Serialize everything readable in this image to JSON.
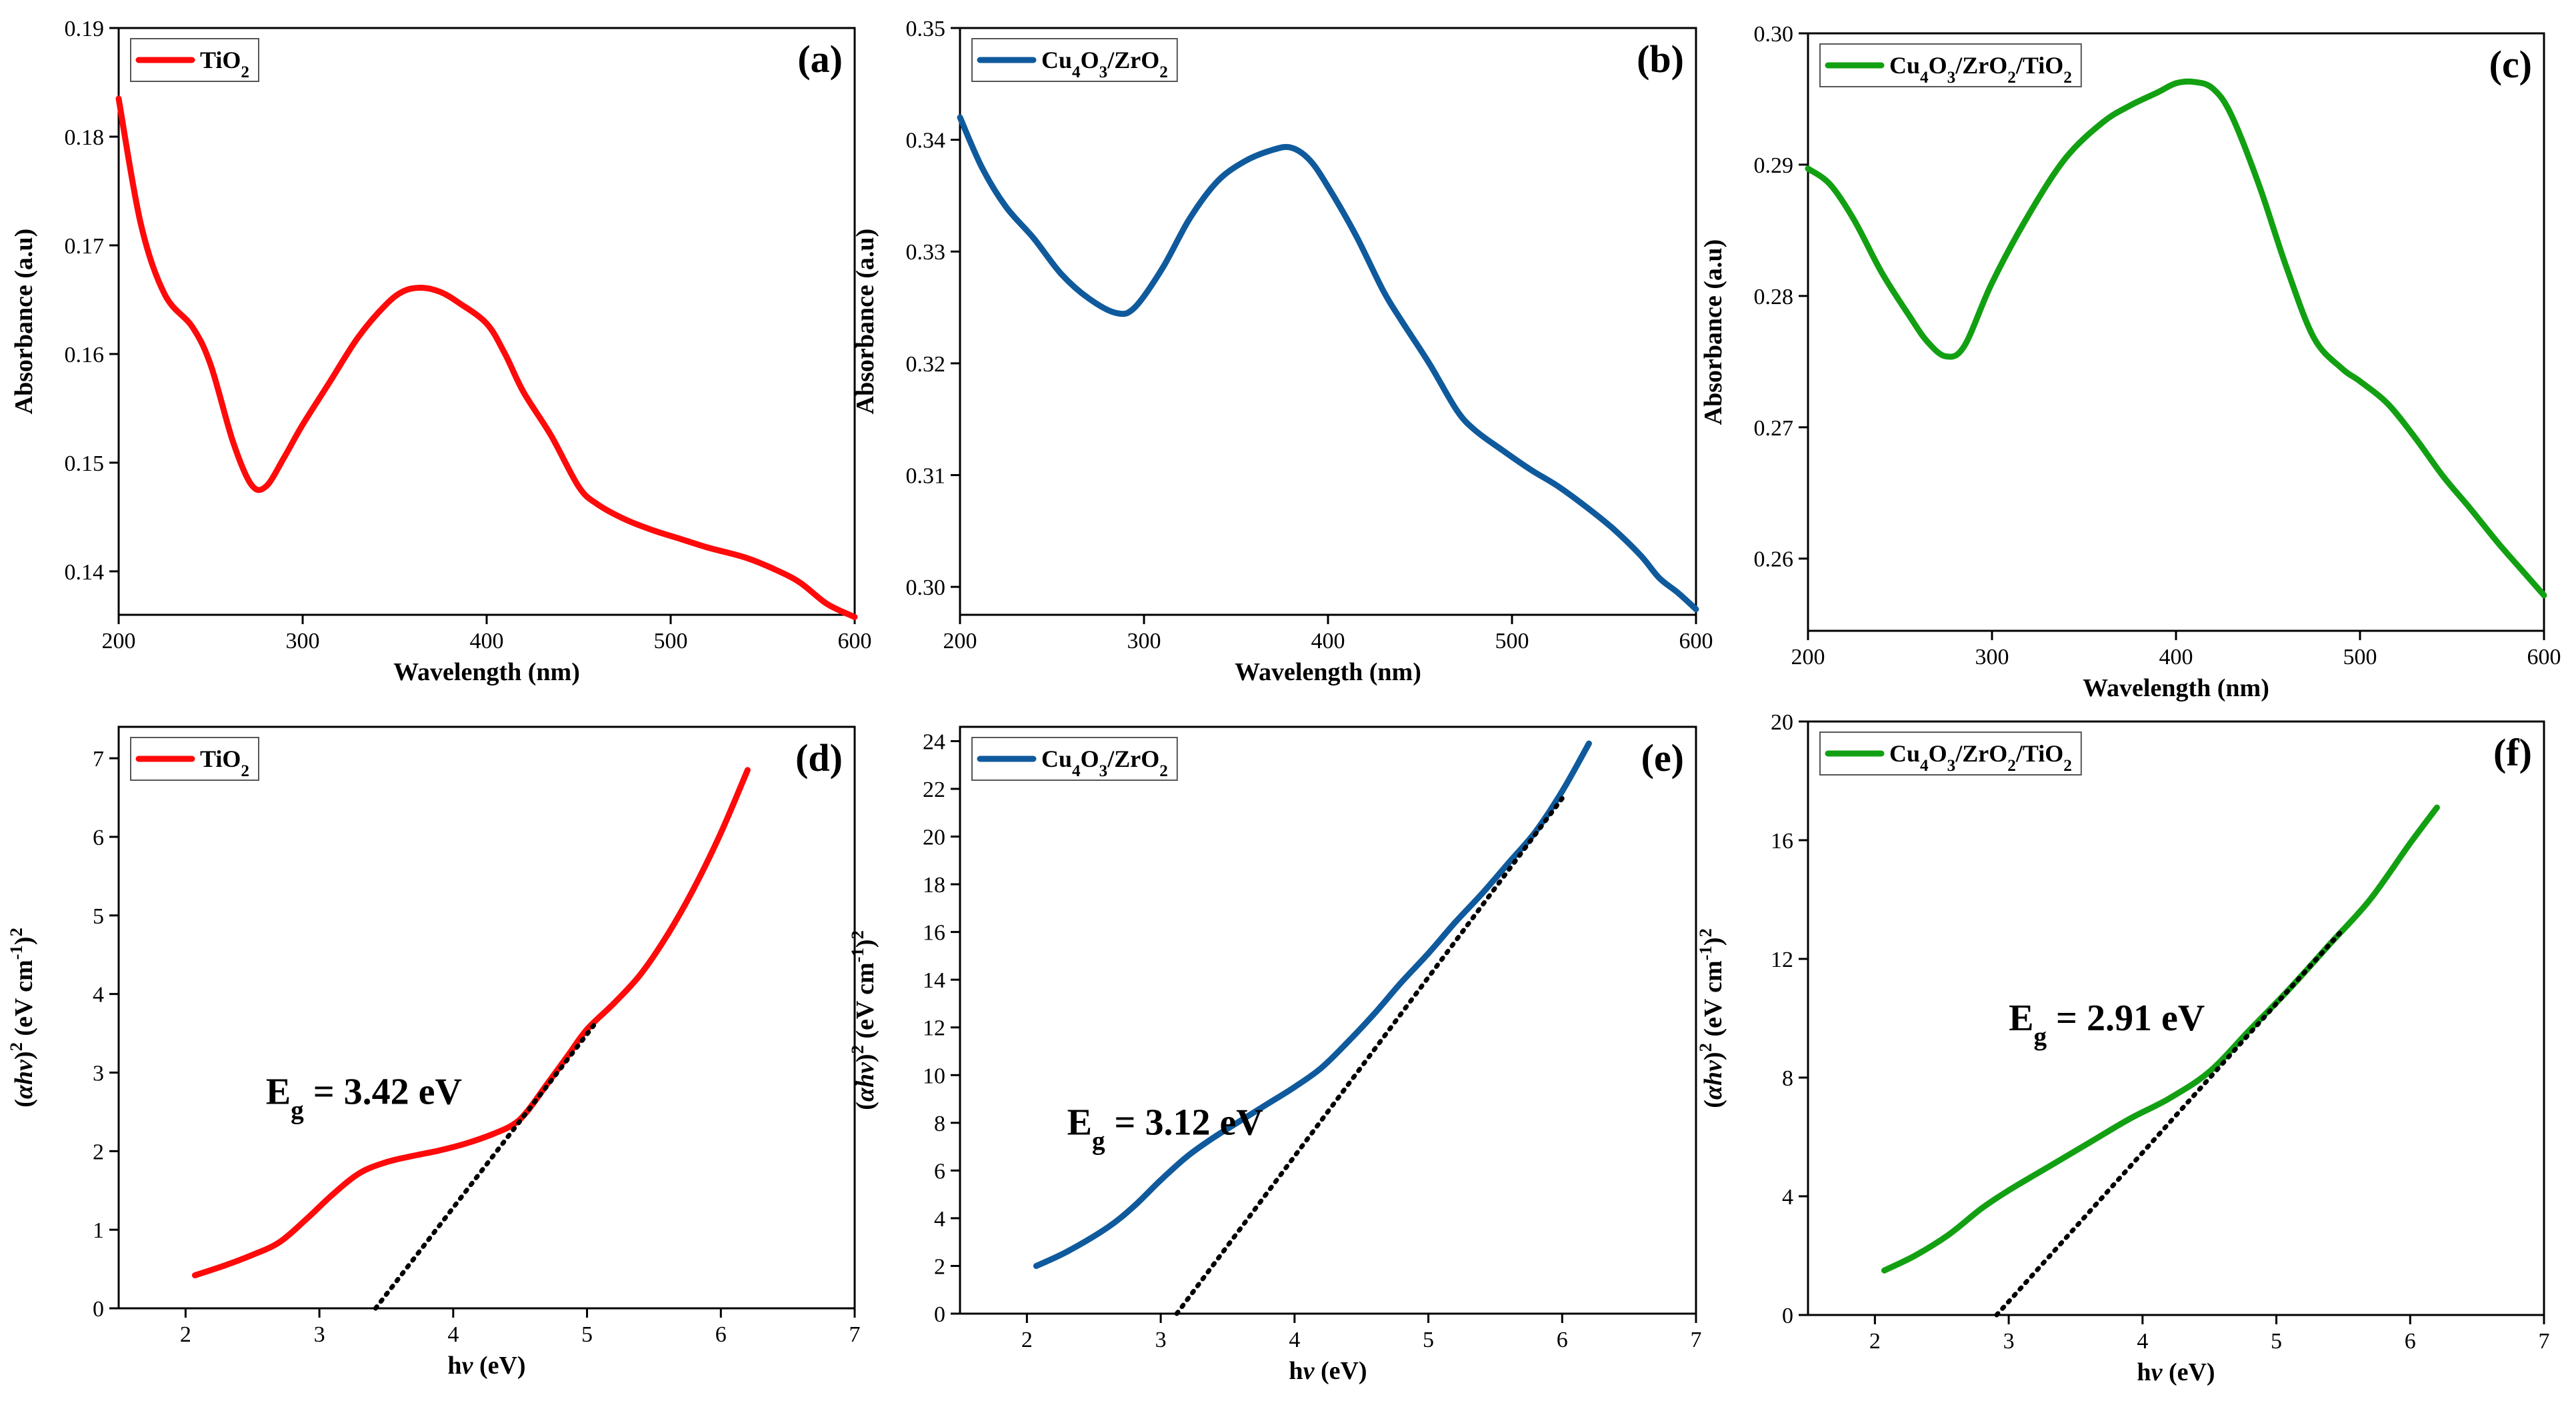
{
  "chart_data": [
    {
      "panel": "(a)",
      "type": "line",
      "title": "",
      "xlabel": "Wavelength (nm)",
      "ylabel": "Absorbance (a.u)",
      "xlim": [
        200,
        600
      ],
      "ylim": [
        0.136,
        0.19
      ],
      "xticks": [
        200,
        300,
        400,
        500,
        600
      ],
      "yticks": [
        0.14,
        0.15,
        0.16,
        0.17,
        0.18,
        0.19
      ],
      "tick_decimals": 2,
      "legend": {
        "label": "TiO2",
        "formula": [
          [
            "TiO",
            ""
          ],
          [
            "2",
            "sub"
          ]
        ],
        "placement": "top-left"
      },
      "series": [
        {
          "name": "TiO2",
          "color": "#ff0a0a",
          "x": [
            200,
            212,
            225,
            240,
            250,
            262,
            272,
            280,
            290,
            300,
            315,
            330,
            345,
            355,
            365,
            375,
            385,
            400,
            410,
            420,
            435,
            450,
            460,
            475,
            490,
            505,
            520,
            540,
            555,
            570,
            585,
            600
          ],
          "y": [
            0.1835,
            0.172,
            0.1655,
            0.1625,
            0.159,
            0.152,
            0.148,
            0.1478,
            0.1505,
            0.1535,
            0.1575,
            0.1615,
            0.1645,
            0.1658,
            0.1661,
            0.1657,
            0.1647,
            0.1628,
            0.16,
            0.1565,
            0.1525,
            0.1478,
            0.1462,
            0.1448,
            0.1438,
            0.143,
            0.1422,
            0.1413,
            0.1403,
            0.139,
            0.137,
            0.1358
          ]
        }
      ]
    },
    {
      "panel": "(b)",
      "type": "line",
      "title": "",
      "xlabel": "Wavelength (nm)",
      "ylabel": "Absorbance (a.u)",
      "xlim": [
        200,
        600
      ],
      "ylim": [
        0.2975,
        0.35
      ],
      "xticks": [
        200,
        300,
        400,
        500,
        600
      ],
      "yticks": [
        0.3,
        0.31,
        0.32,
        0.33,
        0.34,
        0.35
      ],
      "tick_decimals": 2,
      "legend": {
        "label": "Cu4O3/ZrO2",
        "formula": [
          [
            "Cu",
            ""
          ],
          [
            "4",
            "sub"
          ],
          [
            "O",
            ""
          ],
          [
            "3",
            "sub"
          ],
          [
            "/ZrO",
            ""
          ],
          [
            "2",
            "sub"
          ]
        ],
        "placement": "top-left"
      },
      "series": [
        {
          "name": "Cu4O3/ZrO2",
          "color": "#0f5a9c",
          "x": [
            200,
            212,
            225,
            240,
            255,
            270,
            285,
            295,
            310,
            325,
            340,
            355,
            370,
            380,
            390,
            400,
            415,
            430,
            440,
            455,
            470,
            480,
            495,
            510,
            525,
            540,
            555,
            570,
            580,
            590,
            600
          ],
          "y": [
            0.342,
            0.3375,
            0.334,
            0.3312,
            0.328,
            0.3258,
            0.3245,
            0.325,
            0.3285,
            0.333,
            0.3363,
            0.3381,
            0.3391,
            0.3393,
            0.3382,
            0.3358,
            0.3315,
            0.3265,
            0.3238,
            0.32,
            0.3158,
            0.314,
            0.3122,
            0.3105,
            0.309,
            0.3072,
            0.3052,
            0.3028,
            0.3008,
            0.2995,
            0.298
          ]
        }
      ]
    },
    {
      "panel": "(c)",
      "type": "line",
      "title": "",
      "xlabel": "Wavelength (nm)",
      "ylabel": "Absorbance (a.u)",
      "xlim": [
        200,
        600
      ],
      "ylim": [
        0.2545,
        0.3
      ],
      "xticks": [
        200,
        300,
        400,
        500,
        600
      ],
      "yticks": [
        0.26,
        0.27,
        0.28,
        0.29,
        0.3
      ],
      "tick_decimals": 2,
      "legend": {
        "label": "Cu4O3/ZrO2/TiO2",
        "formula": [
          [
            "Cu",
            ""
          ],
          [
            "4",
            "sub"
          ],
          [
            "O",
            ""
          ],
          [
            "3",
            "sub"
          ],
          [
            "/ZrO",
            ""
          ],
          [
            "2",
            "sub"
          ],
          [
            "/TiO",
            ""
          ],
          [
            "2",
            "sub"
          ]
        ],
        "placement": "top-left"
      },
      "series": [
        {
          "name": "Cu4O3/ZrO2/TiO2",
          "color": "#12a012",
          "x": [
            200,
            212,
            225,
            240,
            255,
            265,
            275,
            285,
            300,
            320,
            340,
            360,
            375,
            390,
            400,
            410,
            420,
            430,
            445,
            460,
            475,
            490,
            500,
            515,
            530,
            545,
            560,
            575,
            590,
            600
          ],
          "y": [
            0.2897,
            0.2885,
            0.2858,
            0.2818,
            0.2785,
            0.2765,
            0.2754,
            0.2762,
            0.281,
            0.2862,
            0.2905,
            0.2932,
            0.2945,
            0.2955,
            0.2962,
            0.2963,
            0.2958,
            0.2938,
            0.2885,
            0.2822,
            0.2768,
            0.2745,
            0.2735,
            0.2718,
            0.2692,
            0.2663,
            0.2638,
            0.2612,
            0.2588,
            0.2572
          ]
        }
      ]
    },
    {
      "panel": "(d)",
      "type": "line",
      "title": "",
      "xlabel": "hν (eV)",
      "ylabel": "(αhν)2 (eV cm-1)2",
      "xlim": [
        1.5,
        7
      ],
      "ylim": [
        0,
        7.4
      ],
      "xticks": [
        2,
        3,
        4,
        5,
        6,
        7
      ],
      "yticks": [
        0,
        1,
        2,
        3,
        4,
        5,
        6,
        7
      ],
      "tick_decimals": 0,
      "legend": {
        "label": "TiO2",
        "formula": [
          [
            "TiO",
            ""
          ],
          [
            "2",
            "sub"
          ]
        ],
        "placement": "top-left"
      },
      "annotation": {
        "main": "E",
        "sub": "g",
        "rest": " = 3.42 eV",
        "x": 2.6,
        "y": 2.6
      },
      "series": [
        {
          "name": "TiO2",
          "color": "#ff0a0a",
          "x": [
            2.07,
            2.3,
            2.5,
            2.7,
            2.9,
            3.1,
            3.3,
            3.5,
            3.7,
            3.9,
            4.1,
            4.3,
            4.45,
            4.55,
            4.7,
            4.85,
            5.0,
            5.2,
            5.4,
            5.6,
            5.8,
            6.0,
            6.2
          ],
          "y": [
            0.42,
            0.55,
            0.68,
            0.84,
            1.13,
            1.45,
            1.72,
            1.86,
            1.94,
            2.01,
            2.1,
            2.22,
            2.34,
            2.5,
            2.85,
            3.2,
            3.55,
            3.88,
            4.25,
            4.75,
            5.35,
            6.05,
            6.85
          ]
        },
        {
          "name": "tangent",
          "style": "dotted",
          "color": "#000000",
          "x": [
            3.42,
            5.05
          ],
          "y": [
            0,
            3.6
          ]
        }
      ]
    },
    {
      "panel": "(e)",
      "type": "line",
      "title": "",
      "xlabel": "hν (eV)",
      "ylabel": "(αhν)2 (eV cm-1)2",
      "xlim": [
        1.5,
        7
      ],
      "ylim": [
        0,
        24.6
      ],
      "xticks": [
        2,
        3,
        4,
        5,
        6,
        7
      ],
      "yticks": [
        0,
        2,
        4,
        6,
        8,
        10,
        12,
        14,
        16,
        18,
        20,
        22,
        24
      ],
      "tick_decimals": 0,
      "legend": {
        "label": "Cu4O3/ZrO2",
        "formula": [
          [
            "Cu",
            ""
          ],
          [
            "4",
            "sub"
          ],
          [
            "O",
            ""
          ],
          [
            "3",
            "sub"
          ],
          [
            "/ZrO",
            ""
          ],
          [
            "2",
            "sub"
          ]
        ],
        "placement": "top-left"
      },
      "annotation": {
        "main": "E",
        "sub": "g",
        "rest": " = 3.12 eV",
        "x": 2.3,
        "y": 7.5
      },
      "series": [
        {
          "name": "Cu4O3/ZrO2",
          "color": "#0f5a9c",
          "x": [
            2.07,
            2.3,
            2.6,
            2.8,
            3.0,
            3.2,
            3.4,
            3.6,
            3.8,
            4.0,
            4.2,
            4.4,
            4.6,
            4.8,
            5.0,
            5.2,
            5.4,
            5.6,
            5.8,
            6.0,
            6.2
          ],
          "y": [
            2.0,
            2.6,
            3.6,
            4.5,
            5.6,
            6.6,
            7.4,
            8.1,
            8.8,
            9.5,
            10.3,
            11.4,
            12.6,
            13.9,
            15.1,
            16.4,
            17.6,
            18.9,
            20.2,
            21.9,
            23.9
          ]
        },
        {
          "name": "tangent",
          "style": "dotted",
          "color": "#000000",
          "x": [
            3.12,
            6.0
          ],
          "y": [
            0,
            21.6
          ]
        }
      ]
    },
    {
      "panel": "(f)",
      "type": "line",
      "title": "",
      "xlabel": "hν (eV)",
      "ylabel": "(αhν)2 (eV cm-1)2",
      "xlim": [
        1.5,
        7
      ],
      "ylim": [
        0,
        20
      ],
      "xticks": [
        2,
        3,
        4,
        5,
        6,
        7
      ],
      "yticks": [
        0,
        4,
        8,
        12,
        16,
        20
      ],
      "tick_decimals": 0,
      "legend": {
        "label": "Cu4O3/ZrO2/TiO2",
        "formula": [
          [
            "Cu",
            ""
          ],
          [
            "4",
            "sub"
          ],
          [
            "O",
            ""
          ],
          [
            "3",
            "sub"
          ],
          [
            "/ZrO",
            ""
          ],
          [
            "2",
            "sub"
          ],
          [
            "/TiO",
            ""
          ],
          [
            "2",
            "sub"
          ]
        ],
        "placement": "top-left"
      },
      "annotation": {
        "main": "E",
        "sub": "g",
        "rest": " = 2.91 eV",
        "x": 3.0,
        "y": 9.6
      },
      "series": [
        {
          "name": "Cu4O3/ZrO2/TiO2",
          "color": "#12a012",
          "x": [
            2.07,
            2.3,
            2.55,
            2.8,
            3.0,
            3.3,
            3.6,
            3.9,
            4.2,
            4.5,
            4.8,
            5.1,
            5.4,
            5.7,
            6.0,
            6.2
          ],
          "y": [
            1.5,
            2.0,
            2.7,
            3.6,
            4.2,
            5.0,
            5.8,
            6.6,
            7.3,
            8.2,
            9.6,
            11.0,
            12.5,
            14.0,
            15.9,
            17.1
          ]
        },
        {
          "name": "tangent",
          "style": "dotted",
          "color": "#000000",
          "x": [
            2.91,
            5.5
          ],
          "y": [
            0,
            13.0
          ]
        }
      ]
    }
  ]
}
